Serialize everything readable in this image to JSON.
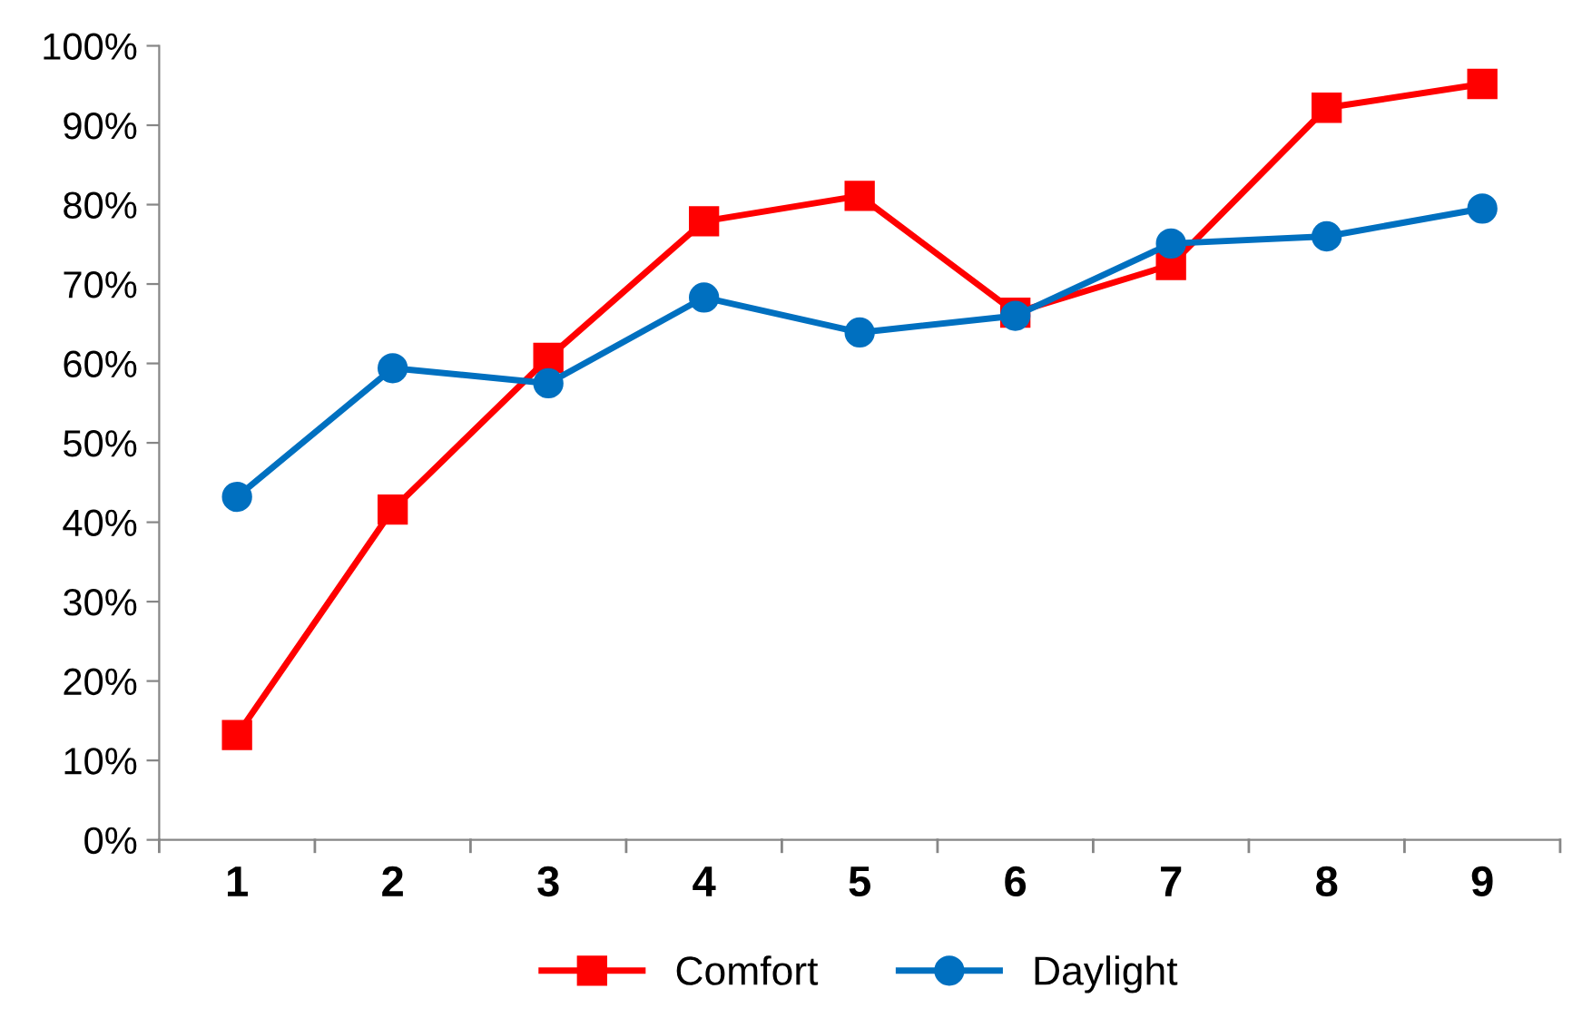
{
  "chart_data": {
    "type": "line",
    "categories": [
      "1",
      "2",
      "3",
      "4",
      "5",
      "6",
      "7",
      "8",
      "9"
    ],
    "series": [
      {
        "name": "Comfort",
        "color": "#ff0000",
        "marker": "square",
        "values": [
          13.2,
          41.6,
          60.7,
          77.9,
          81.1,
          66.4,
          72.4,
          92.2,
          95.2
        ]
      },
      {
        "name": "Daylight",
        "color": "#0070c0",
        "marker": "circle",
        "values": [
          43.2,
          59.4,
          57.5,
          68.3,
          63.9,
          66.0,
          75.1,
          76.0,
          79.5
        ]
      }
    ],
    "ylim": [
      0,
      100
    ],
    "yticks": [
      {
        "value": 0,
        "label": "0%"
      },
      {
        "value": 10,
        "label": "10%"
      },
      {
        "value": 20,
        "label": "20%"
      },
      {
        "value": 30,
        "label": "30%"
      },
      {
        "value": 40,
        "label": "40%"
      },
      {
        "value": 50,
        "label": "50%"
      },
      {
        "value": 60,
        "label": "60%"
      },
      {
        "value": 70,
        "label": "70%"
      },
      {
        "value": 80,
        "label": "80%"
      },
      {
        "value": 90,
        "label": "90%"
      },
      {
        "value": 100,
        "label": "100%"
      }
    ],
    "grid": false,
    "legend": "bottom",
    "line_style": "solid"
  }
}
